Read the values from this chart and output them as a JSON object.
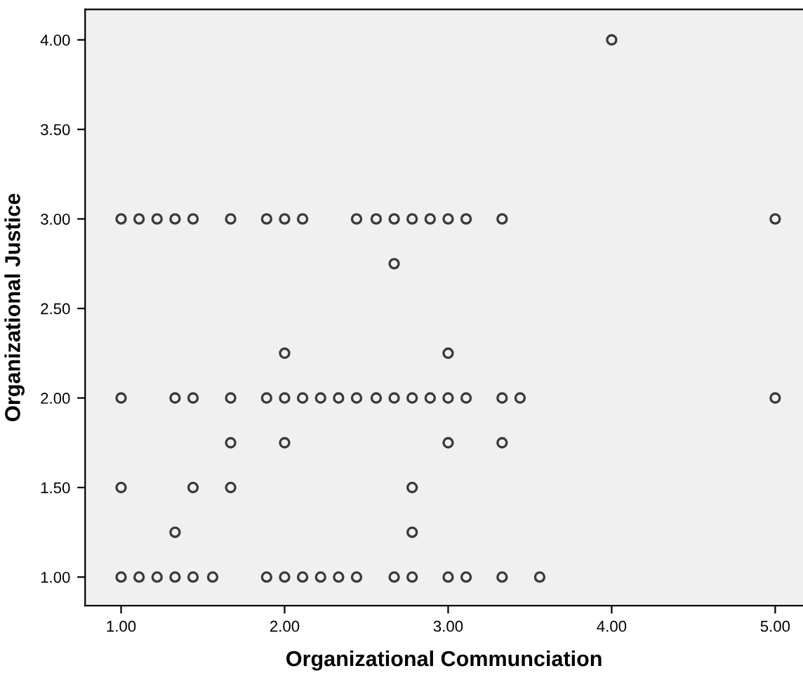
{
  "chart_data": {
    "type": "scatter",
    "xlabel": "Organizational Communciation",
    "ylabel": "Organizational Justice",
    "xlim": [
      0.78,
      5.17
    ],
    "ylim": [
      0.84,
      4.17
    ],
    "xticks": [
      {
        "value": 1,
        "label": "1.00"
      },
      {
        "value": 2,
        "label": "2.00"
      },
      {
        "value": 3,
        "label": "3.00"
      },
      {
        "value": 4,
        "label": "4.00"
      },
      {
        "value": 5,
        "label": "5.00"
      }
    ],
    "yticks": [
      {
        "value": 1,
        "label": "1.00"
      },
      {
        "value": 1.5,
        "label": "1.50"
      },
      {
        "value": 2,
        "label": "2.00"
      },
      {
        "value": 2.5,
        "label": "2.50"
      },
      {
        "value": 3,
        "label": "3.00"
      },
      {
        "value": 3.5,
        "label": "3.50"
      },
      {
        "value": 4,
        "label": "4.00"
      }
    ],
    "grid": false,
    "marker": "circle",
    "series": [
      {
        "color": "#3a3a3a",
        "x": [
          4.0,
          1.0,
          1.11,
          1.22,
          1.33,
          1.44,
          1.67,
          1.89,
          2.0,
          2.11,
          2.44,
          2.56,
          2.67,
          2.78,
          2.89,
          3.0,
          3.11,
          3.33,
          5.0,
          2.67,
          2.0,
          3.0,
          1.0,
          1.33,
          1.44,
          1.67,
          1.89,
          2.0,
          2.11,
          2.22,
          2.33,
          2.44,
          2.56,
          2.67,
          2.78,
          2.89,
          3.0,
          3.11,
          3.33,
          3.44,
          5.0,
          1.67,
          2.0,
          3.0,
          3.33,
          1.0,
          1.44,
          1.67,
          2.78,
          1.33,
          2.78,
          1.0,
          1.11,
          1.22,
          1.33,
          1.44,
          1.56,
          1.89,
          2.0,
          2.11,
          2.22,
          2.33,
          2.44,
          2.67,
          2.78,
          3.0,
          3.11,
          3.33,
          3.56
        ],
        "values": [
          4.0,
          3.0,
          3.0,
          3.0,
          3.0,
          3.0,
          3.0,
          3.0,
          3.0,
          3.0,
          3.0,
          3.0,
          3.0,
          3.0,
          3.0,
          3.0,
          3.0,
          3.0,
          3.0,
          2.75,
          2.25,
          2.25,
          2.0,
          2.0,
          2.0,
          2.0,
          2.0,
          2.0,
          2.0,
          2.0,
          2.0,
          2.0,
          2.0,
          2.0,
          2.0,
          2.0,
          2.0,
          2.0,
          2.0,
          2.0,
          2.0,
          1.75,
          1.75,
          1.75,
          1.75,
          1.5,
          1.5,
          1.5,
          1.5,
          1.25,
          1.25,
          1.0,
          1.0,
          1.0,
          1.0,
          1.0,
          1.0,
          1.0,
          1.0,
          1.0,
          1.0,
          1.0,
          1.0,
          1.0,
          1.0,
          1.0,
          1.0,
          1.0,
          1.0
        ]
      }
    ]
  }
}
